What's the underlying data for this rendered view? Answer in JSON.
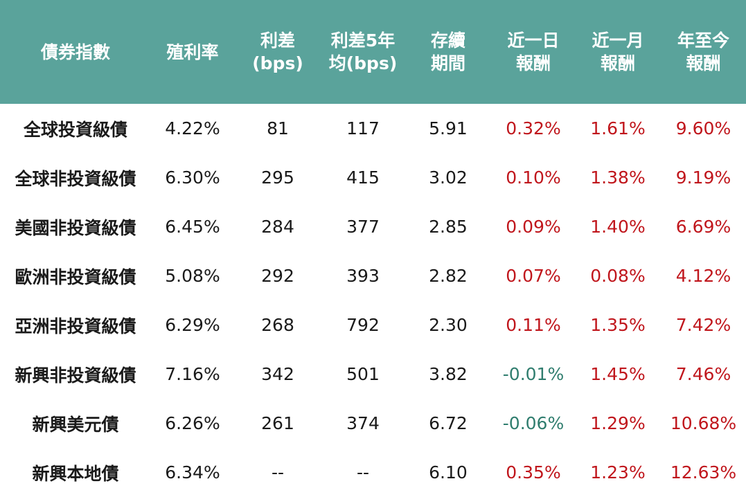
{
  "table": {
    "headers": [
      "債券指數",
      "殖利率",
      "利差\n(bps)",
      "利差5年\n均(bps)",
      "存續\n期間",
      "近一日\n報酬",
      "近一月\n報酬",
      "年至今\n報酬"
    ],
    "rows": [
      {
        "name": "全球投資級債",
        "yield": "4.22%",
        "spread": "81",
        "spread5y": "117",
        "duration": "5.91",
        "ret1d": "0.32%",
        "ret1m": "1.61%",
        "ytd": "9.60%",
        "ret1d_sign": "pos"
      },
      {
        "name": "全球非投資級債",
        "yield": "6.30%",
        "spread": "295",
        "spread5y": "415",
        "duration": "3.02",
        "ret1d": "0.10%",
        "ret1m": "1.38%",
        "ytd": "9.19%",
        "ret1d_sign": "pos"
      },
      {
        "name": "美國非投資級債",
        "yield": "6.45%",
        "spread": "284",
        "spread5y": "377",
        "duration": "2.85",
        "ret1d": "0.09%",
        "ret1m": "1.40%",
        "ytd": "6.69%",
        "ret1d_sign": "pos"
      },
      {
        "name": "歐洲非投資級債",
        "yield": "5.08%",
        "spread": "292",
        "spread5y": "393",
        "duration": "2.82",
        "ret1d": "0.07%",
        "ret1m": "0.08%",
        "ytd": "4.12%",
        "ret1d_sign": "pos"
      },
      {
        "name": "亞洲非投資級債",
        "yield": "6.29%",
        "spread": "268",
        "spread5y": "792",
        "duration": "2.30",
        "ret1d": "0.11%",
        "ret1m": "1.35%",
        "ytd": "7.42%",
        "ret1d_sign": "pos"
      },
      {
        "name": "新興非投資級債",
        "yield": "7.16%",
        "spread": "342",
        "spread5y": "501",
        "duration": "3.82",
        "ret1d": "-0.01%",
        "ret1m": "1.45%",
        "ytd": "7.46%",
        "ret1d_sign": "neg"
      },
      {
        "name": "新興美元債",
        "yield": "6.26%",
        "spread": "261",
        "spread5y": "374",
        "duration": "6.72",
        "ret1d": "-0.06%",
        "ret1m": "1.29%",
        "ytd": "10.68%",
        "ret1d_sign": "neg"
      },
      {
        "name": "新興本地債",
        "yield": "6.34%",
        "spread": "--",
        "spread5y": "--",
        "duration": "6.10",
        "ret1d": "0.35%",
        "ret1m": "1.23%",
        "ytd": "12.63%",
        "ret1d_sign": "pos"
      }
    ]
  },
  "colors": {
    "header_bg": "#5aa39b",
    "positive": "#c0161c",
    "negative": "#2f7d6e"
  }
}
